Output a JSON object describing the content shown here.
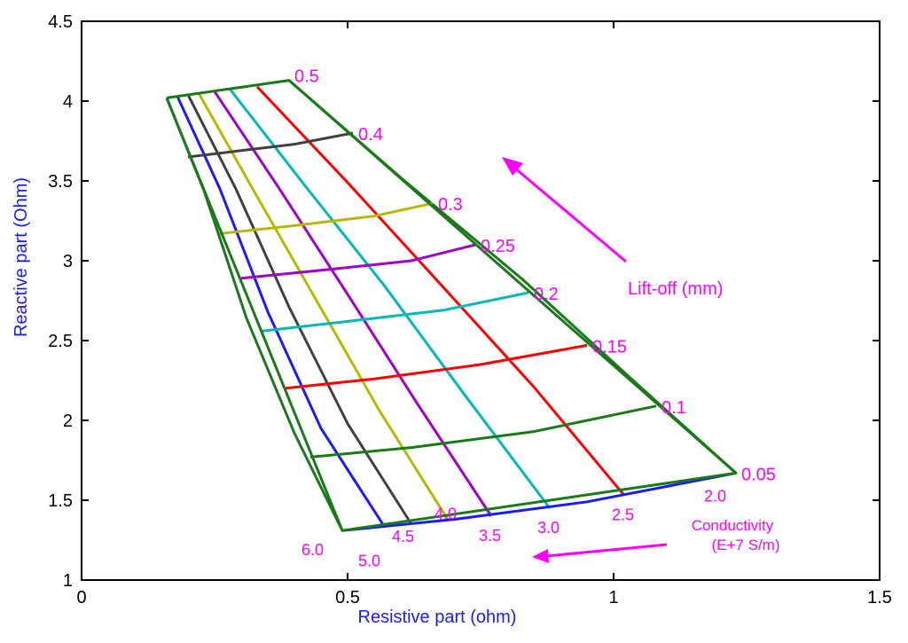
{
  "chart_data": {
    "type": "line",
    "xlabel": "Resistive part (ohm)",
    "ylabel": "Reactive part (Ohm)",
    "xlim": [
      0,
      1.5
    ],
    "ylim": [
      1,
      4.5
    ],
    "x_ticks": [
      "0",
      "0.5",
      "1",
      "1.5"
    ],
    "y_ticks": [
      "1",
      "1.5",
      "2",
      "2.5",
      "3",
      "3.5",
      "4",
      "4.5"
    ],
    "grid": false,
    "colors": {
      "frame": "#000000",
      "boundary": "#1a7a1a",
      "annotation": "#ff00ff",
      "axis_title": "#1a1aff"
    },
    "conductivity_label_lines": [
      "Conductivity",
      "(E+7 S/m)"
    ],
    "liftoff_label": "Lift-off (mm)",
    "liftoff_arrow_direction": "up-left",
    "conductivity_arrow_direction": "left",
    "boundary": [
      [
        0.16,
        4.02
      ],
      [
        0.39,
        4.13
      ],
      [
        1.23,
        1.67
      ],
      [
        0.49,
        1.31
      ],
      [
        0.16,
        4.02
      ]
    ],
    "liftoff_curves": [
      {
        "label": "0.4",
        "color": "#404040",
        "points": [
          [
            0.2,
            3.65
          ],
          [
            0.3,
            3.69
          ],
          [
            0.4,
            3.73
          ],
          [
            0.51,
            3.8
          ]
        ]
      },
      {
        "label": "0.3",
        "color": "#b8b800",
        "points": [
          [
            0.26,
            3.17
          ],
          [
            0.4,
            3.22
          ],
          [
            0.55,
            3.28
          ],
          [
            0.66,
            3.36
          ]
        ]
      },
      {
        "label": "0.25",
        "color": "#a000c8",
        "points": [
          [
            0.3,
            2.89
          ],
          [
            0.45,
            2.94
          ],
          [
            0.62,
            3.0
          ],
          [
            0.74,
            3.1
          ]
        ]
      },
      {
        "label": "0.2",
        "color": "#00b8b8",
        "points": [
          [
            0.34,
            2.56
          ],
          [
            0.5,
            2.62
          ],
          [
            0.68,
            2.69
          ],
          [
            0.84,
            2.8
          ]
        ]
      },
      {
        "label": "0.15",
        "color": "#ff0000",
        "points": [
          [
            0.38,
            2.2
          ],
          [
            0.55,
            2.26
          ],
          [
            0.75,
            2.35
          ],
          [
            0.95,
            2.47
          ]
        ]
      },
      {
        "label": "0.1",
        "color": "#1a7a1a",
        "points": [
          [
            0.43,
            1.77
          ],
          [
            0.62,
            1.83
          ],
          [
            0.85,
            1.93
          ],
          [
            1.08,
            2.09
          ]
        ]
      },
      {
        "label": "0.05",
        "color": "#1a1aff",
        "points": [
          [
            0.49,
            1.31
          ],
          [
            0.7,
            1.38
          ],
          [
            0.95,
            1.49
          ],
          [
            1.23,
            1.67
          ]
        ]
      }
    ],
    "liftoff_top_label": "0.5",
    "conductivity_curves": [
      {
        "label": "2.0",
        "color": "#1a7a1a",
        "points": [
          [
            0.39,
            4.13
          ],
          [
            0.6,
            3.52
          ],
          [
            0.83,
            2.88
          ],
          [
            1.03,
            2.27
          ],
          [
            1.23,
            1.67
          ]
        ]
      },
      {
        "label": "2.5",
        "color": "#ff0000",
        "points": [
          [
            0.33,
            4.09
          ],
          [
            0.5,
            3.49
          ],
          [
            0.67,
            2.87
          ],
          [
            0.85,
            2.21
          ],
          [
            1.02,
            1.53
          ]
        ]
      },
      {
        "label": "3.0",
        "color": "#00b8b8",
        "points": [
          [
            0.28,
            4.07
          ],
          [
            0.42,
            3.47
          ],
          [
            0.57,
            2.84
          ],
          [
            0.72,
            2.16
          ],
          [
            0.88,
            1.45
          ]
        ]
      },
      {
        "label": "3.5",
        "color": "#a000c8",
        "points": [
          [
            0.25,
            4.06
          ],
          [
            0.37,
            3.46
          ],
          [
            0.5,
            2.79
          ],
          [
            0.63,
            2.11
          ],
          [
            0.77,
            1.4
          ]
        ]
      },
      {
        "label": "4.0",
        "color": "#b8b800",
        "points": [
          [
            0.22,
            4.05
          ],
          [
            0.32,
            3.46
          ],
          [
            0.44,
            2.76
          ],
          [
            0.56,
            2.06
          ],
          [
            0.69,
            1.37
          ]
        ]
      },
      {
        "label": "4.5",
        "color": "#404040",
        "points": [
          [
            0.2,
            4.04
          ],
          [
            0.29,
            3.45
          ],
          [
            0.39,
            2.71
          ],
          [
            0.5,
            1.98
          ],
          [
            0.62,
            1.35
          ]
        ]
      },
      {
        "label": "5.0",
        "color": "#1a1aff",
        "points": [
          [
            0.18,
            4.03
          ],
          [
            0.26,
            3.45
          ],
          [
            0.35,
            2.68
          ],
          [
            0.45,
            1.95
          ],
          [
            0.57,
            1.33
          ]
        ]
      },
      {
        "label": "6.0",
        "color": "#1a7a1a",
        "points": [
          [
            0.16,
            4.02
          ],
          [
            0.23,
            3.44
          ],
          [
            0.31,
            2.64
          ],
          [
            0.4,
            1.92
          ],
          [
            0.49,
            1.31
          ]
        ]
      }
    ]
  }
}
